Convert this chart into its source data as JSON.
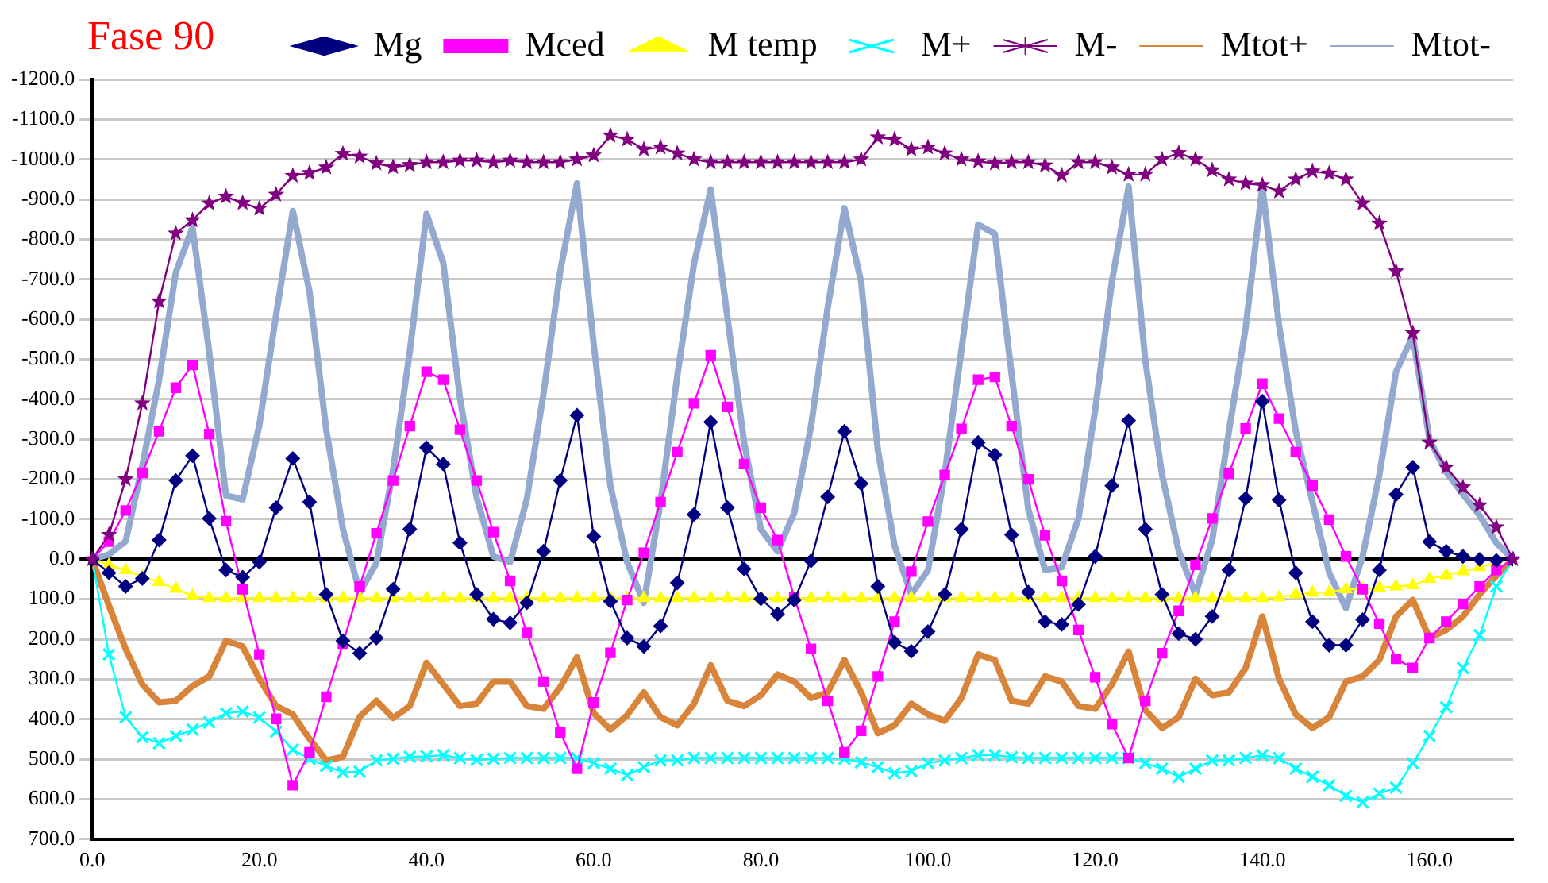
{
  "chart_data": {
    "type": "line",
    "title": "Fase 90",
    "x": [
      0,
      2,
      4,
      6,
      8,
      10,
      12,
      14,
      16,
      18,
      20,
      22,
      24,
      26,
      28,
      30,
      32,
      34,
      36,
      38,
      40,
      42,
      44,
      46,
      48,
      50,
      52,
      54,
      56,
      58,
      60,
      62,
      64,
      66,
      68,
      70,
      72,
      74,
      76,
      78,
      80,
      82,
      84,
      86,
      88,
      90,
      92,
      94,
      96,
      98,
      100,
      102,
      104,
      106,
      108,
      110,
      112,
      114,
      116,
      118,
      120,
      122,
      124,
      126,
      128,
      130,
      132,
      134,
      136,
      138,
      140,
      142,
      144,
      146,
      148,
      150,
      152,
      154,
      156,
      158,
      160,
      162,
      164,
      166,
      168,
      170
    ],
    "series": [
      {
        "name": "Mg",
        "color": "#000080",
        "marker": "diamond",
        "values": [
          0,
          34,
          68,
          48,
          -48,
          -197,
          -259,
          -102,
          27,
          45,
          7,
          -129,
          -252,
          -143,
          88,
          204,
          235,
          197,
          75,
          -75,
          -279,
          -238,
          -41,
          88,
          150,
          159,
          109,
          -20,
          -197,
          -360,
          -57,
          105,
          197,
          218,
          167,
          59,
          -112,
          -343,
          -129,
          24,
          99,
          137,
          102,
          4,
          -156,
          -320,
          -189,
          68,
          208,
          230,
          181,
          88,
          -75,
          -292,
          -261,
          -61,
          82,
          156,
          163,
          113,
          -7,
          -184,
          -347,
          -75,
          88,
          186,
          200,
          143,
          27,
          -152,
          -395,
          -148,
          34,
          156,
          215,
          215,
          151,
          27,
          -162,
          -230,
          -44,
          -20,
          -7,
          0,
          3,
          0
        ]
      },
      {
        "name": "Mced",
        "color": "#ff00ff",
        "marker": "square",
        "values": [
          0,
          -44,
          -122,
          -216,
          -320,
          -429,
          -486,
          -313,
          -95,
          75,
          238,
          399,
          565,
          483,
          344,
          211,
          68,
          -65,
          -197,
          -333,
          -469,
          -449,
          -324,
          -197,
          -68,
          54,
          184,
          306,
          433,
          524,
          358,
          234,
          102,
          -16,
          -143,
          -268,
          -390,
          -510,
          -381,
          -238,
          -129,
          -48,
          95,
          224,
          354,
          483,
          429,
          293,
          156,
          31,
          -94,
          -211,
          -326,
          -449,
          -456,
          -333,
          -200,
          -60,
          54,
          177,
          295,
          412,
          497,
          354,
          235,
          129,
          14,
          -102,
          -214,
          -327,
          -439,
          -352,
          -268,
          -184,
          -99,
          -7,
          75,
          161,
          249,
          272,
          197,
          156,
          112,
          68,
          27,
          0
        ]
      },
      {
        "name": "M temp",
        "color": "#ffff00",
        "marker": "triangle",
        "values": [
          0,
          15,
          27,
          44,
          57,
          74,
          92,
          97,
          97,
          97,
          97,
          97,
          97,
          97,
          97,
          97,
          97,
          97,
          97,
          97,
          97,
          97,
          97,
          97,
          97,
          97,
          97,
          97,
          97,
          97,
          97,
          97,
          97,
          97,
          97,
          97,
          97,
          97,
          97,
          97,
          97,
          97,
          97,
          97,
          97,
          97,
          97,
          97,
          97,
          97,
          97,
          97,
          97,
          97,
          97,
          97,
          97,
          97,
          97,
          97,
          97,
          97,
          97,
          97,
          97,
          97,
          97,
          97,
          97,
          97,
          97,
          95,
          88,
          84,
          82,
          75,
          75,
          71,
          68,
          65,
          49,
          40,
          30,
          20,
          8,
          0
        ]
      },
      {
        "name": "M+",
        "color": "#00ffff",
        "marker": "cross",
        "values": [
          0,
          238,
          395,
          445,
          460,
          442,
          426,
          408,
          385,
          381,
          396,
          431,
          476,
          499,
          517,
          533,
          531,
          503,
          499,
          494,
          493,
          490,
          497,
          502,
          499,
          497,
          497,
          497,
          497,
          497,
          510,
          524,
          540,
          520,
          503,
          503,
          497,
          497,
          497,
          497,
          497,
          497,
          497,
          497,
          497,
          499,
          508,
          520,
          535,
          530,
          510,
          503,
          497,
          490,
          490,
          495,
          497,
          497,
          497,
          497,
          497,
          497,
          497,
          510,
          524,
          544,
          524,
          503,
          503,
          497,
          490,
          497,
          524,
          544,
          565,
          592,
          608,
          586,
          571,
          510,
          442,
          370,
          272,
          190,
          68,
          0
        ]
      },
      {
        "name": "M-",
        "color": "#800080",
        "marker": "star",
        "values": [
          0,
          -61,
          -200,
          -390,
          -645,
          -815,
          -848,
          -890,
          -907,
          -891,
          -877,
          -912,
          -959,
          -966,
          -980,
          -1014,
          -1007,
          -990,
          -981,
          -986,
          -993,
          -993,
          -997,
          -997,
          -993,
          -997,
          -993,
          -993,
          -993,
          -1000,
          -1010,
          -1060,
          -1050,
          -1025,
          -1030,
          -1015,
          -1000,
          -993,
          -993,
          -993,
          -993,
          -993,
          -993,
          -993,
          -993,
          -993,
          -1000,
          -1055,
          -1050,
          -1025,
          -1030,
          -1015,
          -1000,
          -995,
          -990,
          -993,
          -993,
          -985,
          -960,
          -993,
          -993,
          -980,
          -962,
          -962,
          -1000,
          -1016,
          -1000,
          -973,
          -950,
          -940,
          -936,
          -920,
          -950,
          -970,
          -965,
          -950,
          -890,
          -840,
          -720,
          -566,
          -292,
          -230,
          -180,
          -135,
          -80,
          0
        ]
      },
      {
        "name": "Mtot+",
        "color": "#d9843b",
        "marker": "none",
        "values": [
          0,
          116,
          224,
          313,
          358,
          354,
          317,
          293,
          204,
          218,
          299,
          367,
          388,
          449,
          503,
          494,
          394,
          354,
          397,
          367,
          259,
          313,
          367,
          361,
          306,
          306,
          367,
          374,
          320,
          245,
          385,
          426,
          390,
          333,
          395,
          415,
          361,
          265,
          354,
          367,
          340,
          288,
          306,
          347,
          333,
          252,
          333,
          435,
          415,
          361,
          388,
          404,
          347,
          238,
          252,
          354,
          361,
          293,
          306,
          367,
          374,
          313,
          231,
          377,
          422,
          395,
          299,
          340,
          333,
          272,
          143,
          299,
          388,
          422,
          395,
          306,
          293,
          252,
          143,
          102,
          197,
          177,
          143,
          88,
          41,
          0
        ]
      },
      {
        "name": "Mtot-",
        "color": "#93a9cf",
        "marker": "none",
        "values": [
          0,
          -12,
          -45,
          -234,
          -449,
          -717,
          -830,
          -518,
          -159,
          -150,
          -336,
          -611,
          -871,
          -669,
          -324,
          -75,
          83,
          10,
          -224,
          -520,
          -864,
          -741,
          -403,
          -154,
          -7,
          7,
          -150,
          -415,
          -721,
          -940,
          -537,
          -184,
          7,
          109,
          -143,
          -459,
          -739,
          -925,
          -605,
          -292,
          -75,
          -20,
          -116,
          -332,
          -630,
          -878,
          -694,
          -273,
          -34,
          88,
          27,
          -214,
          -524,
          -837,
          -814,
          -463,
          -125,
          27,
          20,
          -102,
          -374,
          -694,
          -932,
          -497,
          -211,
          -20,
          88,
          -48,
          -320,
          -578,
          -932,
          -585,
          -320,
          -143,
          34,
          122,
          -7,
          -211,
          -469,
          -558,
          -299,
          -218,
          -163,
          -109,
          -41,
          0
        ]
      }
    ],
    "xlim": [
      0,
      170
    ],
    "xticks": [
      {
        "value": 0,
        "label": "0.0"
      },
      {
        "value": 20,
        "label": "20.0"
      },
      {
        "value": 40,
        "label": "40.0"
      },
      {
        "value": 60,
        "label": "60.0"
      },
      {
        "value": 80,
        "label": "80.0"
      },
      {
        "value": 100,
        "label": "100.0"
      },
      {
        "value": 120,
        "label": "120.0"
      },
      {
        "value": 140,
        "label": "140.0"
      },
      {
        "value": 160,
        "label": "160.0"
      }
    ],
    "ylim": [
      700,
      -1200
    ],
    "yticks": [
      {
        "value": -1200,
        "label": "-1200.0"
      },
      {
        "value": -1100,
        "label": "-1100.0"
      },
      {
        "value": -1000,
        "label": "-1000.0"
      },
      {
        "value": -900,
        "label": "-900.0"
      },
      {
        "value": -800,
        "label": "-800.0"
      },
      {
        "value": -700,
        "label": "-700.0"
      },
      {
        "value": -600,
        "label": "-600.0"
      },
      {
        "value": -500,
        "label": "-500.0"
      },
      {
        "value": -400,
        "label": "-400.0"
      },
      {
        "value": -300,
        "label": "-300.0"
      },
      {
        "value": -200,
        "label": "-200.0"
      },
      {
        "value": -100,
        "label": "-100.0"
      },
      {
        "value": 0,
        "label": "0.0"
      },
      {
        "value": 100,
        "label": "100.0"
      },
      {
        "value": 200,
        "label": "200.0"
      },
      {
        "value": 300,
        "label": "300.0"
      },
      {
        "value": 400,
        "label": "400.0"
      },
      {
        "value": 500,
        "label": "500.0"
      },
      {
        "value": 600,
        "label": "600.0"
      },
      {
        "value": 700,
        "label": "700.0"
      }
    ],
    "grid": "y",
    "legend": "top right"
  }
}
